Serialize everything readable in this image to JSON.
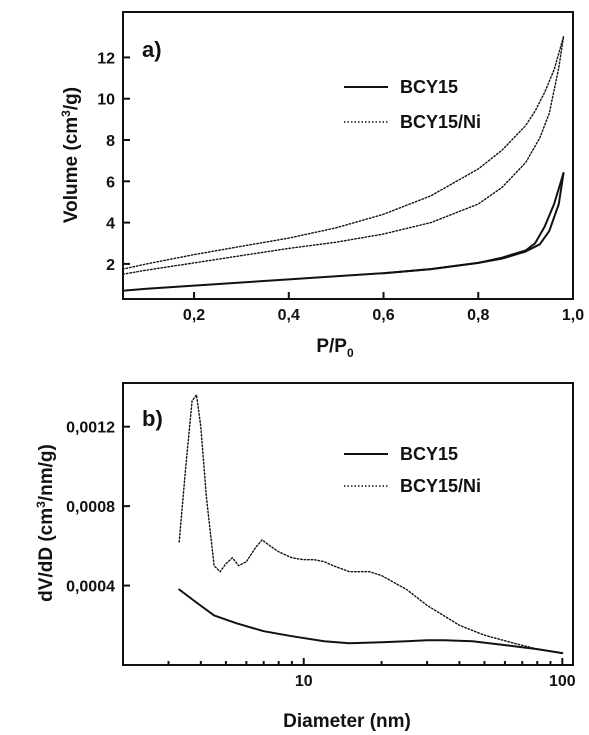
{
  "chart_data": [
    {
      "panel_label": "a)",
      "type": "line",
      "xlabel_main": "P/P",
      "xlabel_sub": "0",
      "ylabel_pre": "Volume (cm",
      "ylabel_sup": "3",
      "ylabel_post": "/g)",
      "xlim": [
        0.05,
        1.0
      ],
      "ylim": [
        0.3,
        14.2
      ],
      "x_ticks": [
        {
          "value": 0.2,
          "label": "0,2"
        },
        {
          "value": 0.4,
          "label": "0,4"
        },
        {
          "value": 0.6,
          "label": "0,6"
        },
        {
          "value": 0.8,
          "label": "0,8"
        },
        {
          "value": 1.0,
          "label": "1,0"
        }
      ],
      "y_ticks": [
        {
          "value": 2,
          "label": "2"
        },
        {
          "value": 4,
          "label": "4"
        },
        {
          "value": 6,
          "label": "6"
        },
        {
          "value": 8,
          "label": "8"
        },
        {
          "value": 10,
          "label": "10"
        },
        {
          "value": 12,
          "label": "12"
        }
      ],
      "series": [
        {
          "name": "BCY15",
          "style": "solid",
          "branches": [
            {
              "x": [
                0.05,
                0.1,
                0.2,
                0.3,
                0.4,
                0.5,
                0.6,
                0.7,
                0.8,
                0.85,
                0.9,
                0.93,
                0.95,
                0.97,
                0.98
              ],
              "y": [
                0.7,
                0.8,
                0.95,
                1.1,
                1.25,
                1.4,
                1.55,
                1.75,
                2.05,
                2.25,
                2.6,
                2.95,
                3.6,
                4.9,
                6.4
              ]
            },
            {
              "x": [
                0.98,
                0.96,
                0.94,
                0.92,
                0.9,
                0.85,
                0.8,
                0.7,
                0.6
              ],
              "y": [
                6.4,
                4.9,
                3.8,
                3.0,
                2.65,
                2.3,
                2.05,
                1.75,
                1.55
              ]
            }
          ]
        },
        {
          "name": "BCY15/Ni",
          "style": "dotted",
          "branches": [
            {
              "x": [
                0.05,
                0.1,
                0.2,
                0.3,
                0.4,
                0.5,
                0.6,
                0.7,
                0.8,
                0.85,
                0.9,
                0.93,
                0.95,
                0.97,
                0.98
              ],
              "y": [
                1.5,
                1.7,
                2.05,
                2.4,
                2.75,
                3.05,
                3.45,
                4.0,
                4.9,
                5.7,
                6.9,
                8.1,
                9.3,
                11.5,
                13.0
              ]
            },
            {
              "x": [
                0.98,
                0.96,
                0.94,
                0.92,
                0.9,
                0.85,
                0.8,
                0.7,
                0.6,
                0.5,
                0.4,
                0.3,
                0.2,
                0.1,
                0.05
              ],
              "y": [
                13.0,
                11.4,
                10.3,
                9.4,
                8.7,
                7.5,
                6.6,
                5.3,
                4.4,
                3.75,
                3.25,
                2.85,
                2.45,
                2.0,
                1.75
              ]
            }
          ]
        }
      ],
      "legend_position": "top-right"
    },
    {
      "panel_label": "b)",
      "type": "line",
      "xscale": "log",
      "xlabel": "Diameter (nm)",
      "ylabel_pre": "dV/dD (cm",
      "ylabel_sup": "3",
      "ylabel_post": "/nm/g)",
      "xlim": [
        2,
        110
      ],
      "ylim": [
        0.0,
        0.00142
      ],
      "x_ticks": [
        {
          "value": 10,
          "label": "10"
        },
        {
          "value": 100,
          "label": "100"
        }
      ],
      "y_ticks": [
        {
          "value": 0.0004,
          "label": "0,0004"
        },
        {
          "value": 0.0008,
          "label": "0,0008"
        },
        {
          "value": 0.0012,
          "label": "0,0012"
        }
      ],
      "series": [
        {
          "name": "BCY15",
          "style": "solid",
          "x": [
            3.3,
            3.8,
            4.5,
            5.5,
            7,
            9,
            12,
            15,
            20,
            25,
            30,
            35,
            45,
            60,
            80,
            100
          ],
          "y": [
            0.00038,
            0.00032,
            0.00025,
            0.00021,
            0.00017,
            0.000145,
            0.00012,
            0.00011,
            0.000115,
            0.00012,
            0.000125,
            0.000125,
            0.00012,
            0.0001,
            8e-05,
            6e-05
          ]
        },
        {
          "name": "BCY15/Ni",
          "style": "dotted",
          "x": [
            3.3,
            3.5,
            3.7,
            3.85,
            4.0,
            4.2,
            4.5,
            4.75,
            5.0,
            5.3,
            5.6,
            6.0,
            6.5,
            6.9,
            7.4,
            8.0,
            9.0,
            10,
            11,
            12,
            13,
            15,
            18,
            20,
            25,
            30,
            40,
            50,
            65,
            80,
            100
          ],
          "y": [
            0.00062,
            0.001,
            0.00133,
            0.00136,
            0.0012,
            0.00085,
            0.0005,
            0.00047,
            0.00051,
            0.00054,
            0.0005,
            0.00052,
            0.00059,
            0.00063,
            0.0006,
            0.00057,
            0.00054,
            0.00053,
            0.00053,
            0.00052,
            0.0005,
            0.00047,
            0.00047,
            0.00045,
            0.00038,
            0.0003,
            0.0002,
            0.00015,
            0.00011,
            8e-05,
            6e-05
          ]
        }
      ],
      "legend_position": "top-right"
    }
  ]
}
